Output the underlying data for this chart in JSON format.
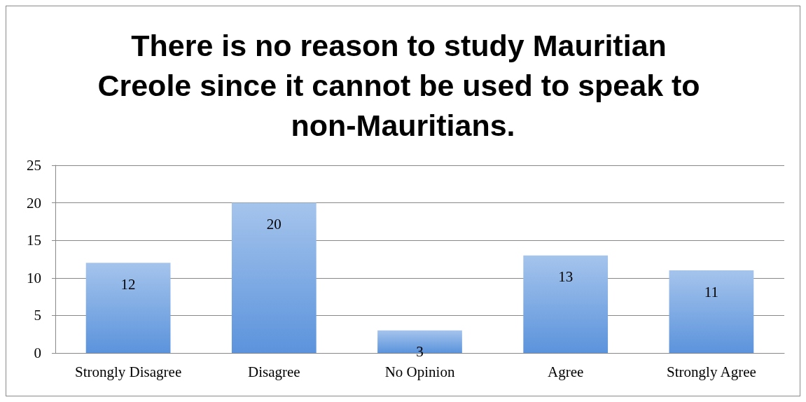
{
  "chart_data": {
    "type": "bar",
    "title": "There is no reason to study Mauritian Creole since it cannot be used to speak to non-Mauritians.",
    "categories": [
      "Strongly Disagree",
      "Disagree",
      "No Opinion",
      "Agree",
      "Strongly Agree"
    ],
    "values": [
      12,
      20,
      3,
      13,
      11
    ],
    "color": "#5b93dc",
    "ylim": [
      0,
      25
    ],
    "yticks": [
      0,
      5,
      10,
      15,
      20,
      25
    ],
    "grid": "y",
    "data_labels": true
  }
}
